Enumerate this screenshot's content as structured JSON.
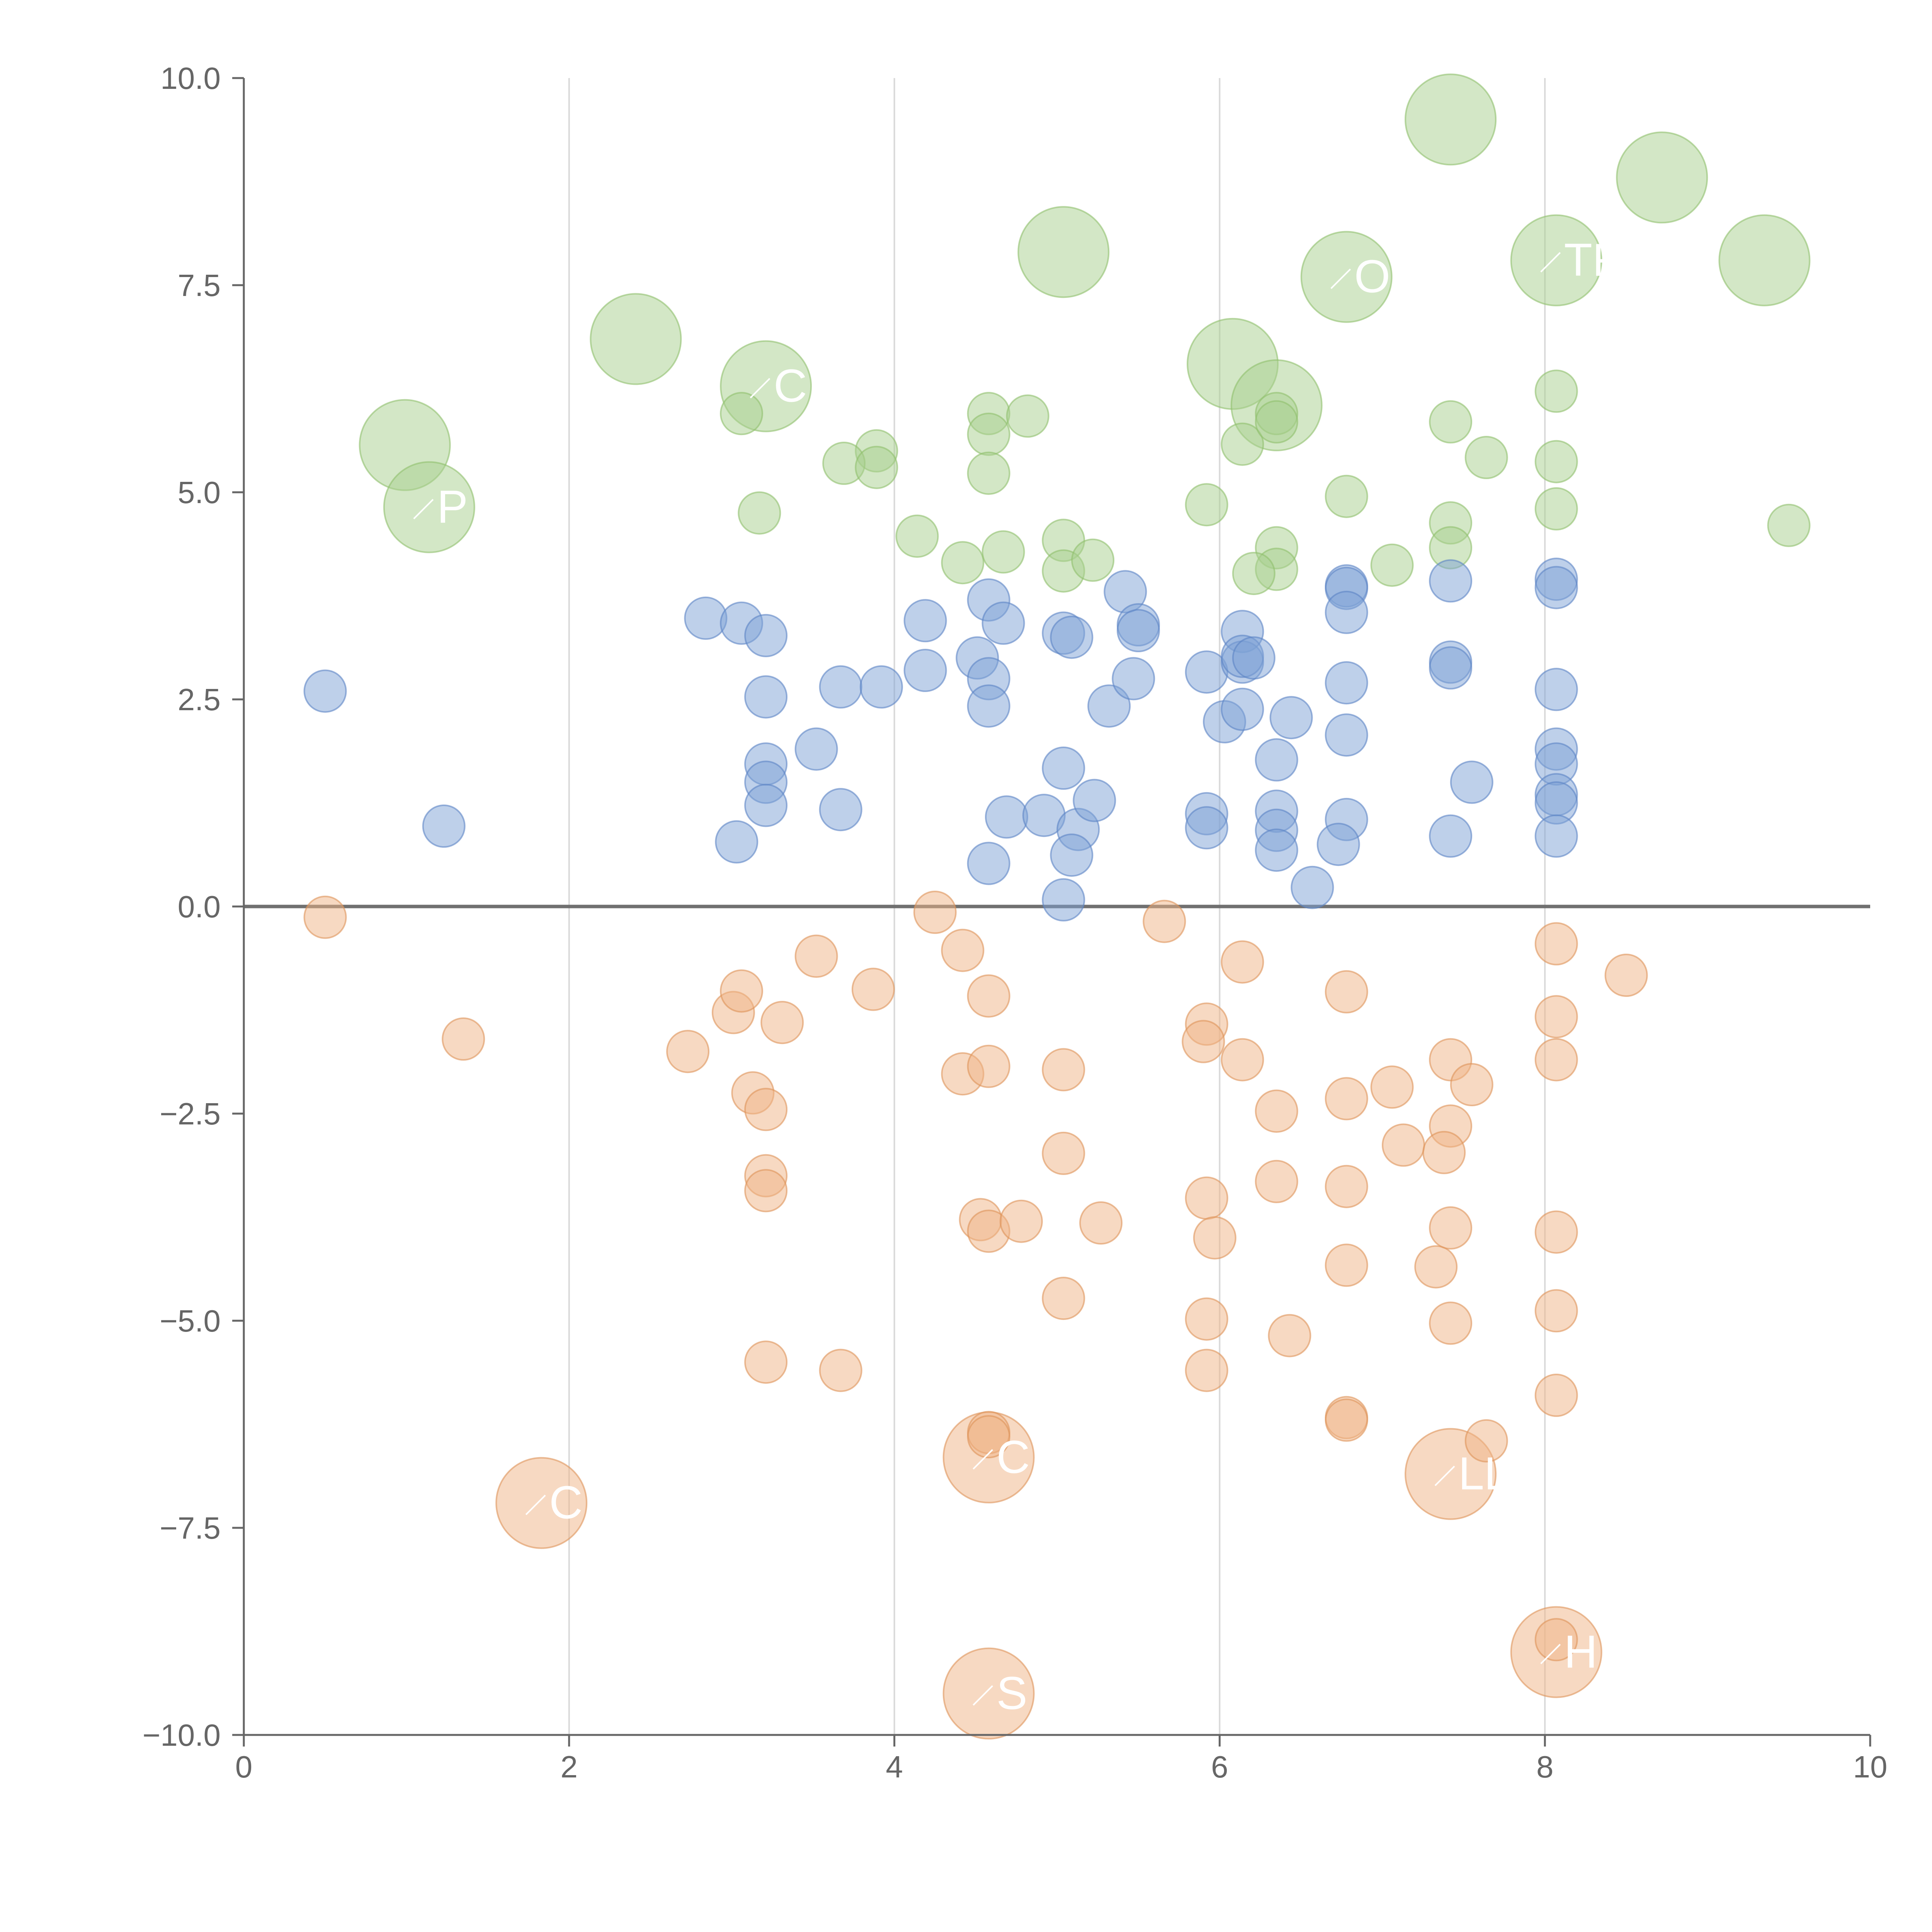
{
  "chart_data": {
    "type": "scatter",
    "title": "",
    "xlabel": "",
    "ylabel": "",
    "xlim": [
      0,
      10
    ],
    "ylim": [
      -10,
      10
    ],
    "x_ticks": [
      "0",
      "2",
      "4",
      "6",
      "8",
      "10"
    ],
    "y_ticks": [
      "−10.0",
      "−7.5",
      "−5.0",
      "−2.5",
      "0.0",
      "2.5",
      "5.0",
      "7.5",
      "10.0"
    ],
    "x_tick_values": [
      0,
      2,
      4,
      6,
      8,
      10
    ],
    "y_tick_values": [
      -10,
      -7.5,
      -5,
      -2.5,
      0,
      2.5,
      5,
      7.5,
      10
    ],
    "grid": "vertical",
    "reference_line": 0,
    "legend": "none",
    "series": [
      {
        "color": "#a8d08d",
        "stroke": "#8fbf6c",
        "points": [
          [
            7.42,
            9.5,
            1.3,
            ""
          ],
          [
            8.72,
            8.8,
            1.3,
            ""
          ],
          [
            5.04,
            7.9,
            1.3,
            ""
          ],
          [
            6.78,
            7.6,
            1.3,
            "OX"
          ],
          [
            8.07,
            7.8,
            1.3,
            "TR"
          ],
          [
            9.35,
            7.8,
            1.3,
            ""
          ],
          [
            2.41,
            6.85,
            1.3,
            ""
          ],
          [
            3.21,
            6.28,
            1.3,
            "C"
          ],
          [
            6.08,
            6.55,
            1.3,
            ""
          ],
          [
            6.35,
            6.05,
            1.3,
            ""
          ],
          [
            0.99,
            5.57,
            1.3,
            ""
          ],
          [
            1.14,
            4.82,
            1.3,
            "P"
          ],
          [
            3.06,
            5.95,
            0.6
          ],
          [
            4.58,
            5.95,
            0.6
          ],
          [
            4.82,
            5.92,
            0.6
          ],
          [
            4.58,
            5.7,
            0.6
          ],
          [
            3.89,
            5.5,
            0.6
          ],
          [
            3.69,
            5.35,
            0.6
          ],
          [
            3.89,
            5.3,
            0.6
          ],
          [
            4.58,
            5.23,
            0.6
          ],
          [
            3.17,
            4.75,
            0.6
          ],
          [
            4.14,
            4.47,
            0.6
          ],
          [
            4.42,
            4.15,
            0.6
          ],
          [
            4.67,
            4.28,
            0.6
          ],
          [
            5.04,
            4.42,
            0.6
          ],
          [
            5.04,
            4.05,
            0.6
          ],
          [
            5.22,
            4.18,
            0.6
          ],
          [
            5.92,
            4.85,
            0.6
          ],
          [
            6.14,
            5.58,
            0.6
          ],
          [
            6.35,
            5.95,
            0.6
          ],
          [
            6.35,
            5.85,
            0.6
          ],
          [
            6.35,
            4.33,
            0.6
          ],
          [
            6.35,
            4.07,
            0.6
          ],
          [
            6.21,
            4.02,
            0.6
          ],
          [
            6.78,
            4.95,
            0.6
          ],
          [
            7.06,
            4.12,
            0.6
          ],
          [
            7.42,
            5.85,
            0.6
          ],
          [
            7.42,
            4.63,
            0.6
          ],
          [
            7.42,
            4.33,
            0.6
          ],
          [
            7.64,
            5.42,
            0.6
          ],
          [
            8.07,
            6.22,
            0.6
          ],
          [
            8.07,
            5.37,
            0.6
          ],
          [
            8.07,
            4.8,
            0.6
          ],
          [
            9.5,
            4.6,
            0.6
          ]
        ]
      },
      {
        "color": "#7ea2d6",
        "stroke": "#5b84c4",
        "points": [
          [
            0.5,
            2.6,
            0.6
          ],
          [
            1.23,
            0.97,
            0.6
          ],
          [
            2.84,
            3.48,
            0.6
          ],
          [
            3.06,
            3.42,
            0.6
          ],
          [
            3.21,
            3.27,
            0.6
          ],
          [
            3.21,
            2.53,
            0.6
          ],
          [
            3.21,
            1.72,
            0.6
          ],
          [
            3.21,
            1.5,
            0.6
          ],
          [
            3.21,
            1.22,
            0.6
          ],
          [
            3.03,
            0.78,
            0.6
          ],
          [
            3.52,
            1.9,
            0.6
          ],
          [
            3.67,
            2.65,
            0.6
          ],
          [
            3.67,
            1.17,
            0.6
          ],
          [
            3.92,
            2.65,
            0.6
          ],
          [
            4.19,
            3.45,
            0.6
          ],
          [
            4.19,
            2.85,
            0.6
          ],
          [
            4.51,
            3.0,
            0.6
          ],
          [
            4.58,
            3.7,
            0.6
          ],
          [
            4.58,
            2.75,
            0.6
          ],
          [
            4.58,
            2.42,
            0.6
          ],
          [
            4.58,
            0.52,
            0.6
          ],
          [
            4.67,
            3.42,
            0.6
          ],
          [
            4.69,
            1.08,
            0.6
          ],
          [
            4.92,
            1.1,
            0.6
          ],
          [
            5.04,
            3.3,
            0.6
          ],
          [
            5.09,
            3.25,
            0.6
          ],
          [
            5.04,
            1.67,
            0.6
          ],
          [
            5.13,
            0.93,
            0.6
          ],
          [
            5.09,
            0.62,
            0.6
          ],
          [
            5.04,
            0.08,
            0.6
          ],
          [
            5.23,
            1.28,
            0.6
          ],
          [
            5.32,
            2.42,
            0.6
          ],
          [
            5.42,
            3.8,
            0.6
          ],
          [
            5.47,
            2.75,
            0.6
          ],
          [
            5.5,
            3.4,
            0.6
          ],
          [
            5.5,
            3.33,
            0.6
          ],
          [
            5.92,
            2.83,
            0.6
          ],
          [
            6.03,
            2.23,
            0.6
          ],
          [
            5.92,
            1.12,
            0.6
          ],
          [
            5.92,
            0.95,
            0.6
          ],
          [
            6.14,
            3.32,
            0.6
          ],
          [
            6.14,
            2.95,
            0.6
          ],
          [
            6.14,
            3.02,
            0.6
          ],
          [
            6.21,
            3.0,
            0.6
          ],
          [
            6.14,
            2.38,
            0.6
          ],
          [
            6.35,
            1.77,
            0.6
          ],
          [
            6.35,
            1.15,
            0.6
          ],
          [
            6.35,
            0.92,
            0.6
          ],
          [
            6.35,
            0.68,
            0.6
          ],
          [
            6.44,
            2.28,
            0.6
          ],
          [
            6.57,
            0.23,
            0.6
          ],
          [
            6.78,
            3.87,
            0.6
          ],
          [
            6.78,
            3.84,
            0.6
          ],
          [
            6.78,
            3.55,
            0.6
          ],
          [
            6.78,
            2.7,
            0.6
          ],
          [
            6.78,
            2.07,
            0.6
          ],
          [
            6.78,
            1.05,
            0.6
          ],
          [
            6.73,
            0.75,
            0.6
          ],
          [
            7.42,
            3.93,
            0.6
          ],
          [
            7.42,
            2.95,
            0.6
          ],
          [
            7.42,
            2.88,
            0.6
          ],
          [
            7.55,
            1.5,
            0.6
          ],
          [
            7.42,
            0.85,
            0.6
          ],
          [
            8.07,
            3.95,
            0.6
          ],
          [
            8.07,
            3.85,
            0.6
          ],
          [
            8.07,
            2.62,
            0.6
          ],
          [
            8.07,
            1.9,
            0.6
          ],
          [
            8.07,
            1.72,
            0.6
          ],
          [
            8.07,
            1.35,
            0.6
          ],
          [
            8.07,
            1.25,
            0.6
          ],
          [
            8.07,
            0.85,
            0.6
          ]
        ]
      },
      {
        "color": "#efb385",
        "stroke": "#de9259",
        "points": [
          [
            1.83,
            -7.2,
            1.3,
            "C"
          ],
          [
            4.58,
            -6.65,
            1.3,
            "C"
          ],
          [
            4.58,
            -9.5,
            1.3,
            "S"
          ],
          [
            7.42,
            -6.85,
            1.3,
            "LL"
          ],
          [
            8.07,
            -9.0,
            1.3,
            "H"
          ],
          [
            0.5,
            -0.13,
            0.6
          ],
          [
            1.35,
            -1.6,
            0.6
          ],
          [
            2.73,
            -1.75,
            0.6
          ],
          [
            3.01,
            -1.28,
            0.6
          ],
          [
            3.06,
            -1.02,
            0.6
          ],
          [
            3.13,
            -2.25,
            0.6
          ],
          [
            3.21,
            -2.45,
            0.6
          ],
          [
            3.31,
            -1.4,
            0.6
          ],
          [
            3.21,
            -3.25,
            0.6
          ],
          [
            3.21,
            -3.43,
            0.6
          ],
          [
            3.21,
            -5.5,
            0.6
          ],
          [
            3.52,
            -0.6,
            0.6
          ],
          [
            3.67,
            -5.6,
            0.6
          ],
          [
            3.87,
            -1.0,
            0.6
          ],
          [
            4.25,
            -0.07,
            0.6
          ],
          [
            4.42,
            -0.53,
            0.6
          ],
          [
            4.42,
            -2.02,
            0.6
          ],
          [
            4.58,
            -1.08,
            0.6
          ],
          [
            4.58,
            -1.93,
            0.6
          ],
          [
            4.53,
            -3.78,
            0.6
          ],
          [
            4.58,
            -3.92,
            0.6
          ],
          [
            4.78,
            -3.8,
            0.6
          ],
          [
            4.58,
            -6.35,
            0.6
          ],
          [
            4.58,
            -6.4,
            0.6
          ],
          [
            5.04,
            -1.97,
            0.6
          ],
          [
            5.04,
            -2.98,
            0.6
          ],
          [
            5.27,
            -3.82,
            0.6
          ],
          [
            5.04,
            -4.73,
            0.6
          ],
          [
            5.66,
            -0.18,
            0.6
          ],
          [
            5.92,
            -1.42,
            0.6
          ],
          [
            5.9,
            -1.63,
            0.6
          ],
          [
            5.92,
            -3.52,
            0.6
          ],
          [
            5.97,
            -4.0,
            0.6
          ],
          [
            5.92,
            -4.98,
            0.6
          ],
          [
            5.92,
            -5.6,
            0.6
          ],
          [
            6.14,
            -0.67,
            0.6
          ],
          [
            6.14,
            -1.85,
            0.6
          ],
          [
            6.35,
            -2.47,
            0.6
          ],
          [
            6.35,
            -3.32,
            0.6
          ],
          [
            6.43,
            -5.18,
            0.6
          ],
          [
            6.78,
            -1.03,
            0.6
          ],
          [
            6.78,
            -2.32,
            0.6
          ],
          [
            6.78,
            -3.38,
            0.6
          ],
          [
            6.78,
            -4.33,
            0.6
          ],
          [
            6.78,
            -6.17,
            0.6
          ],
          [
            6.78,
            -6.2,
            0.6
          ],
          [
            7.06,
            -2.18,
            0.6
          ],
          [
            7.13,
            -2.88,
            0.6
          ],
          [
            7.33,
            -4.35,
            0.6
          ],
          [
            7.42,
            -1.85,
            0.6
          ],
          [
            7.42,
            -2.65,
            0.6
          ],
          [
            7.38,
            -2.97,
            0.6
          ],
          [
            7.42,
            -3.88,
            0.6
          ],
          [
            7.42,
            -5.03,
            0.6
          ],
          [
            7.55,
            -2.15,
            0.6
          ],
          [
            7.64,
            -6.45,
            0.6
          ],
          [
            8.07,
            -0.45,
            0.6
          ],
          [
            8.07,
            -1.33,
            0.6
          ],
          [
            8.07,
            -1.85,
            0.6
          ],
          [
            8.07,
            -3.93,
            0.6
          ],
          [
            8.07,
            -4.88,
            0.6
          ],
          [
            8.07,
            -5.9,
            0.6
          ],
          [
            8.07,
            -8.85,
            0.6
          ],
          [
            8.5,
            -0.83,
            0.6
          ]
        ]
      }
    ]
  }
}
